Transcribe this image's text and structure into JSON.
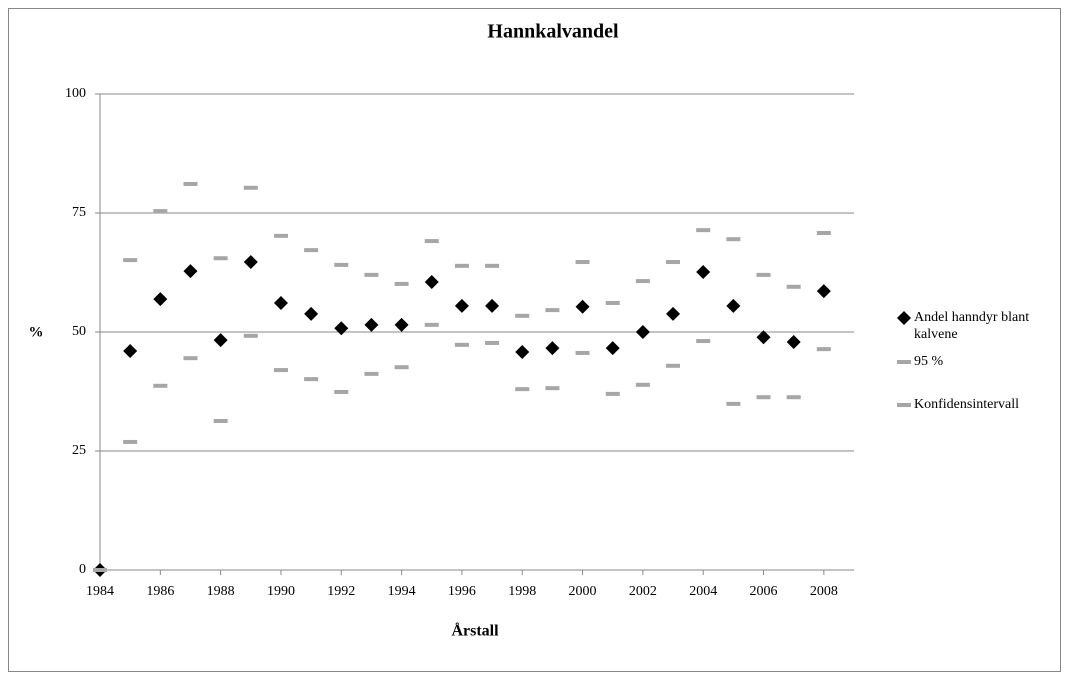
{
  "chart_data": {
    "type": "scatter",
    "title": "Hannkalvandel",
    "x_label": "Årstall",
    "y_label": "%",
    "x": [
      1984,
      1985,
      1986,
      1987,
      1988,
      1989,
      1990,
      1991,
      1992,
      1993,
      1994,
      1995,
      1996,
      1997,
      1998,
      1999,
      2000,
      2001,
      2002,
      2003,
      2004,
      2005,
      2006,
      2007,
      2008
    ],
    "series": [
      {
        "name": "Andel hanndyr blant kalvene",
        "color": "#000000",
        "marker": "diamond",
        "values": [
          0,
          46.0,
          56.9,
          62.8,
          48.3,
          64.7,
          56.1,
          53.8,
          50.8,
          51.5,
          51.5,
          60.5,
          55.5,
          55.5,
          45.8,
          46.6,
          55.3,
          46.6,
          50.0,
          53.8,
          62.6,
          55.5,
          48.9,
          47.9,
          58.6
        ]
      },
      {
        "name": "95 %",
        "color": "#a6a6a6",
        "marker": "dash",
        "values": [
          0,
          65.1,
          75.4,
          81.1,
          65.5,
          80.3,
          70.2,
          67.2,
          64.1,
          62.0,
          60.1,
          69.1,
          63.9,
          63.9,
          53.4,
          54.6,
          64.7,
          56.1,
          60.7,
          64.7,
          71.4,
          69.5,
          62.0,
          59.5,
          70.8
        ]
      },
      {
        "name": "Konfidensintervall",
        "color": "#a6a6a6",
        "marker": "dash",
        "values": [
          0,
          26.9,
          38.7,
          44.5,
          31.3,
          49.2,
          42.0,
          40.1,
          37.4,
          41.2,
          42.6,
          51.5,
          47.3,
          47.7,
          38.0,
          38.2,
          45.6,
          37.0,
          38.9,
          42.9,
          48.1,
          34.9,
          36.3,
          36.3,
          46.4
        ]
      }
    ],
    "xlim": [
      1984,
      2009
    ],
    "xticks": [
      1984,
      1986,
      1988,
      1990,
      1992,
      1994,
      1996,
      1998,
      2000,
      2002,
      2004,
      2006,
      2008
    ],
    "ylim": [
      0,
      100
    ],
    "yticks": [
      0,
      25,
      50,
      75,
      100
    ],
    "grid": true,
    "legend": "right"
  }
}
